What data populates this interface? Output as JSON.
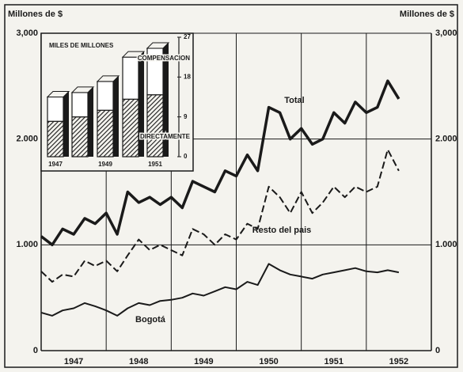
{
  "chart_data": [
    {
      "type": "line",
      "y_label": "Millones de $",
      "y2_label": "Millones de $",
      "x": [
        1947,
        1947.17,
        1947.33,
        1947.5,
        1947.67,
        1947.83,
        1948,
        1948.17,
        1948.33,
        1948.5,
        1948.67,
        1948.83,
        1949,
        1949.17,
        1949.33,
        1949.5,
        1949.67,
        1949.83,
        1950,
        1950.17,
        1950.33,
        1950.5,
        1950.67,
        1950.83,
        1951,
        1951.17,
        1951.33,
        1951.5,
        1951.67,
        1951.83,
        1952,
        1952.17,
        1952.33,
        1952.5
      ],
      "xlim": [
        1947,
        1953
      ],
      "xticks": [
        1947,
        1948,
        1949,
        1950,
        1951,
        1952
      ],
      "ylim": [
        0,
        3000
      ],
      "yticks": [
        0,
        {
          "value": 1000,
          "label": "1.000"
        },
        {
          "value": 2000,
          "label": "2.000"
        },
        {
          "value": 3000,
          "label": "3,000"
        }
      ],
      "y2lim": [
        0,
        3000
      ],
      "y2ticks": [
        0,
        {
          "value": 1000,
          "label": "1.000"
        },
        {
          "value": 2000,
          "label": "2.000"
        },
        {
          "value": 3000,
          "label": "3,000"
        }
      ],
      "grid": true,
      "series": [
        {
          "name": "Total",
          "color": "#1a1a1a",
          "line_style": "solid",
          "values": [
            1080,
            1000,
            1150,
            1100,
            1250,
            1200,
            1300,
            1100,
            1500,
            1400,
            1450,
            1380,
            1450,
            1350,
            1600,
            1550,
            1500,
            1700,
            1650,
            1850,
            1700,
            2300,
            2250,
            2000,
            2100,
            1950,
            2000,
            2250,
            2150,
            2350,
            2250,
            2300,
            2550,
            2380
          ]
        },
        {
          "name": "Resto del pais",
          "color": "#1a1a1a",
          "line_style": "dashed",
          "values": [
            750,
            650,
            720,
            700,
            850,
            800,
            850,
            750,
            900,
            1050,
            950,
            1000,
            950,
            900,
            1150,
            1100,
            1000,
            1100,
            1050,
            1200,
            1150,
            1550,
            1450,
            1300,
            1500,
            1300,
            1400,
            1550,
            1450,
            1550,
            1500,
            1550,
            1900,
            1700
          ]
        },
        {
          "name": "Bogotá",
          "color": "#1a1a1a",
          "line_style": "solid",
          "values": [
            360,
            330,
            380,
            400,
            450,
            420,
            380,
            330,
            400,
            450,
            430,
            470,
            480,
            500,
            540,
            520,
            560,
            600,
            580,
            650,
            620,
            820,
            760,
            720,
            700,
            680,
            720,
            740,
            760,
            780,
            750,
            740,
            760,
            740
          ]
        }
      ]
    },
    {
      "type": "bar",
      "stacked": true,
      "title": "MILES DE MILLONES",
      "categories": [
        "1947",
        null,
        "1949",
        null,
        "1951"
      ],
      "ylim": [
        0,
        27
      ],
      "yticks": [
        0,
        9,
        18,
        27
      ],
      "series": [
        {
          "name": "DIRECTAMENTE",
          "color": "#1a1a1a",
          "pattern": "hatched",
          "values": [
            8,
            9,
            10.5,
            13,
            14
          ]
        },
        {
          "name": "COMPENSACION",
          "color": "#ffffff",
          "values": [
            5.5,
            5.5,
            6.5,
            9.5,
            10.5
          ]
        }
      ]
    }
  ]
}
